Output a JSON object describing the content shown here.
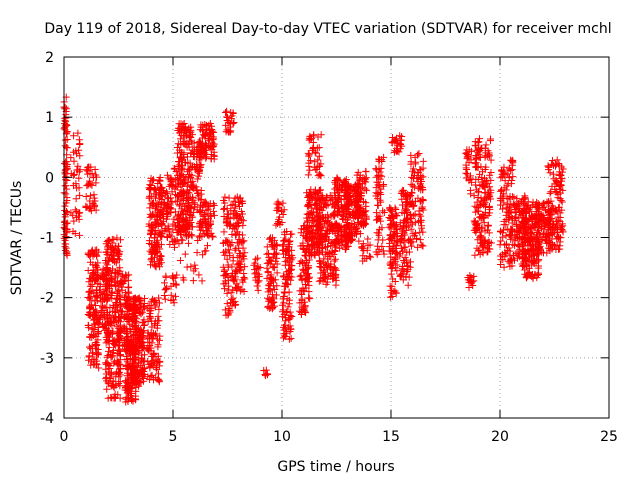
{
  "chart_data": {
    "type": "scatter",
    "title": "Day 119 of 2018, Sidereal Day-to-day VTEC variation (SDTVAR) for receiver mchl",
    "xlabel": "GPS time / hours",
    "ylabel": "SDTVAR / TECUs",
    "xlim": [
      0,
      25
    ],
    "ylim": [
      -4,
      2
    ],
    "x_ticks": [
      "0",
      "5",
      "10",
      "15",
      "20",
      "25"
    ],
    "y_ticks": [
      "-4",
      "-3",
      "-2",
      "-1",
      "0",
      "1",
      "2"
    ],
    "grid": true,
    "marker": "+",
    "marker_color": "#ff0000",
    "grid_color": "#a0a0a0",
    "point_clusters": [
      {
        "x": [
          0.0,
          0.15
        ],
        "y": [
          -1.3,
          1.35
        ],
        "n": 90
      },
      {
        "x": [
          0.3,
          0.75
        ],
        "y": [
          -1.0,
          0.75
        ],
        "n": 40
      },
      {
        "x": [
          1.0,
          1.5
        ],
        "y": [
          -0.6,
          0.2
        ],
        "n": 40
      },
      {
        "x": [
          1.1,
          1.6
        ],
        "y": [
          -3.2,
          -1.2
        ],
        "n": 150
      },
      {
        "x": [
          1.6,
          2.0
        ],
        "y": [
          -2.6,
          -1.5
        ],
        "n": 60
      },
      {
        "x": [
          1.9,
          2.6
        ],
        "y": [
          -3.7,
          -1.0
        ],
        "n": 260
      },
      {
        "x": [
          2.5,
          3.0
        ],
        "y": [
          -2.9,
          -1.6
        ],
        "n": 80
      },
      {
        "x": [
          2.8,
          3.3
        ],
        "y": [
          -3.75,
          -2.0
        ],
        "n": 200
      },
      {
        "x": [
          3.2,
          3.7
        ],
        "y": [
          -3.5,
          -2.0
        ],
        "n": 160
      },
      {
        "x": [
          3.8,
          4.4
        ],
        "y": [
          -3.4,
          -2.0
        ],
        "n": 100
      },
      {
        "x": [
          3.9,
          4.5
        ],
        "y": [
          -1.5,
          0.0
        ],
        "n": 150
      },
      {
        "x": [
          4.4,
          4.8
        ],
        "y": [
          -1.0,
          -0.2
        ],
        "n": 40
      },
      {
        "x": [
          4.6,
          5.2
        ],
        "y": [
          -2.1,
          -1.6
        ],
        "n": 25
      },
      {
        "x": [
          4.7,
          5.4
        ],
        "y": [
          -1.2,
          0.2
        ],
        "n": 80
      },
      {
        "x": [
          5.2,
          5.9
        ],
        "y": [
          -1.0,
          0.9
        ],
        "n": 220
      },
      {
        "x": [
          5.9,
          6.3
        ],
        "y": [
          -0.6,
          0.6
        ],
        "n": 60
      },
      {
        "x": [
          6.2,
          6.9
        ],
        "y": [
          0.3,
          0.9
        ],
        "n": 90
      },
      {
        "x": [
          6.2,
          6.9
        ],
        "y": [
          -1.0,
          -0.4
        ],
        "n": 70
      },
      {
        "x": [
          5.3,
          6.6
        ],
        "y": [
          -1.8,
          -1.0
        ],
        "n": 20
      },
      {
        "x": [
          7.4,
          7.8
        ],
        "y": [
          0.7,
          1.1
        ],
        "n": 25
      },
      {
        "x": [
          7.3,
          7.9
        ],
        "y": [
          -2.3,
          -0.3
        ],
        "n": 110
      },
      {
        "x": [
          7.9,
          8.3
        ],
        "y": [
          -1.9,
          -0.3
        ],
        "n": 70
      },
      {
        "x": [
          8.7,
          9.0
        ],
        "y": [
          -1.9,
          -1.3
        ],
        "n": 20
      },
      {
        "x": [
          9.1,
          9.4
        ],
        "y": [
          -3.35,
          -3.2
        ],
        "n": 6
      },
      {
        "x": [
          9.3,
          9.8
        ],
        "y": [
          -2.2,
          -1.0
        ],
        "n": 80
      },
      {
        "x": [
          9.7,
          10.1
        ],
        "y": [
          -0.8,
          -0.4
        ],
        "n": 20
      },
      {
        "x": [
          10.0,
          10.5
        ],
        "y": [
          -2.7,
          -0.9
        ],
        "n": 110
      },
      {
        "x": [
          10.8,
          11.3
        ],
        "y": [
          -2.3,
          -0.8
        ],
        "n": 90
      },
      {
        "x": [
          11.1,
          11.8
        ],
        "y": [
          -1.3,
          -0.2
        ],
        "n": 150
      },
      {
        "x": [
          11.2,
          11.8
        ],
        "y": [
          0.0,
          0.75
        ],
        "n": 40
      },
      {
        "x": [
          11.7,
          12.5
        ],
        "y": [
          -1.8,
          -0.3
        ],
        "n": 170
      },
      {
        "x": [
          12.4,
          13.1
        ],
        "y": [
          -1.2,
          0.0
        ],
        "n": 150
      },
      {
        "x": [
          12.9,
          13.6
        ],
        "y": [
          -1.1,
          -0.1
        ],
        "n": 140
      },
      {
        "x": [
          13.4,
          13.9
        ],
        "y": [
          -0.8,
          0.1
        ],
        "n": 70
      },
      {
        "x": [
          13.6,
          14.1
        ],
        "y": [
          -1.4,
          -0.6
        ],
        "n": 20
      },
      {
        "x": [
          14.3,
          14.7
        ],
        "y": [
          -1.3,
          0.35
        ],
        "n": 60
      },
      {
        "x": [
          14.9,
          15.3
        ],
        "y": [
          -2.0,
          -0.5
        ],
        "n": 100
      },
      {
        "x": [
          15.0,
          15.5
        ],
        "y": [
          0.4,
          0.7
        ],
        "n": 25
      },
      {
        "x": [
          15.4,
          15.9
        ],
        "y": [
          -1.8,
          -0.2
        ],
        "n": 100
      },
      {
        "x": [
          15.9,
          16.5
        ],
        "y": [
          -1.2,
          0.4
        ],
        "n": 90
      },
      {
        "x": [
          18.5,
          18.8
        ],
        "y": [
          -1.85,
          -1.55
        ],
        "n": 15
      },
      {
        "x": [
          18.4,
          18.7
        ],
        "y": [
          -0.3,
          0.5
        ],
        "n": 25
      },
      {
        "x": [
          18.8,
          19.6
        ],
        "y": [
          -1.3,
          0.65
        ],
        "n": 180
      },
      {
        "x": [
          20.0,
          20.6
        ],
        "y": [
          -1.5,
          0.3
        ],
        "n": 110
      },
      {
        "x": [
          20.6,
          21.2
        ],
        "y": [
          -1.4,
          -0.3
        ],
        "n": 90
      },
      {
        "x": [
          21.0,
          21.8
        ],
        "y": [
          -1.7,
          -0.4
        ],
        "n": 200
      },
      {
        "x": [
          21.7,
          22.3
        ],
        "y": [
          -1.3,
          -0.4
        ],
        "n": 80
      },
      {
        "x": [
          22.2,
          22.9
        ],
        "y": [
          -1.2,
          0.3
        ],
        "n": 130
      }
    ]
  }
}
